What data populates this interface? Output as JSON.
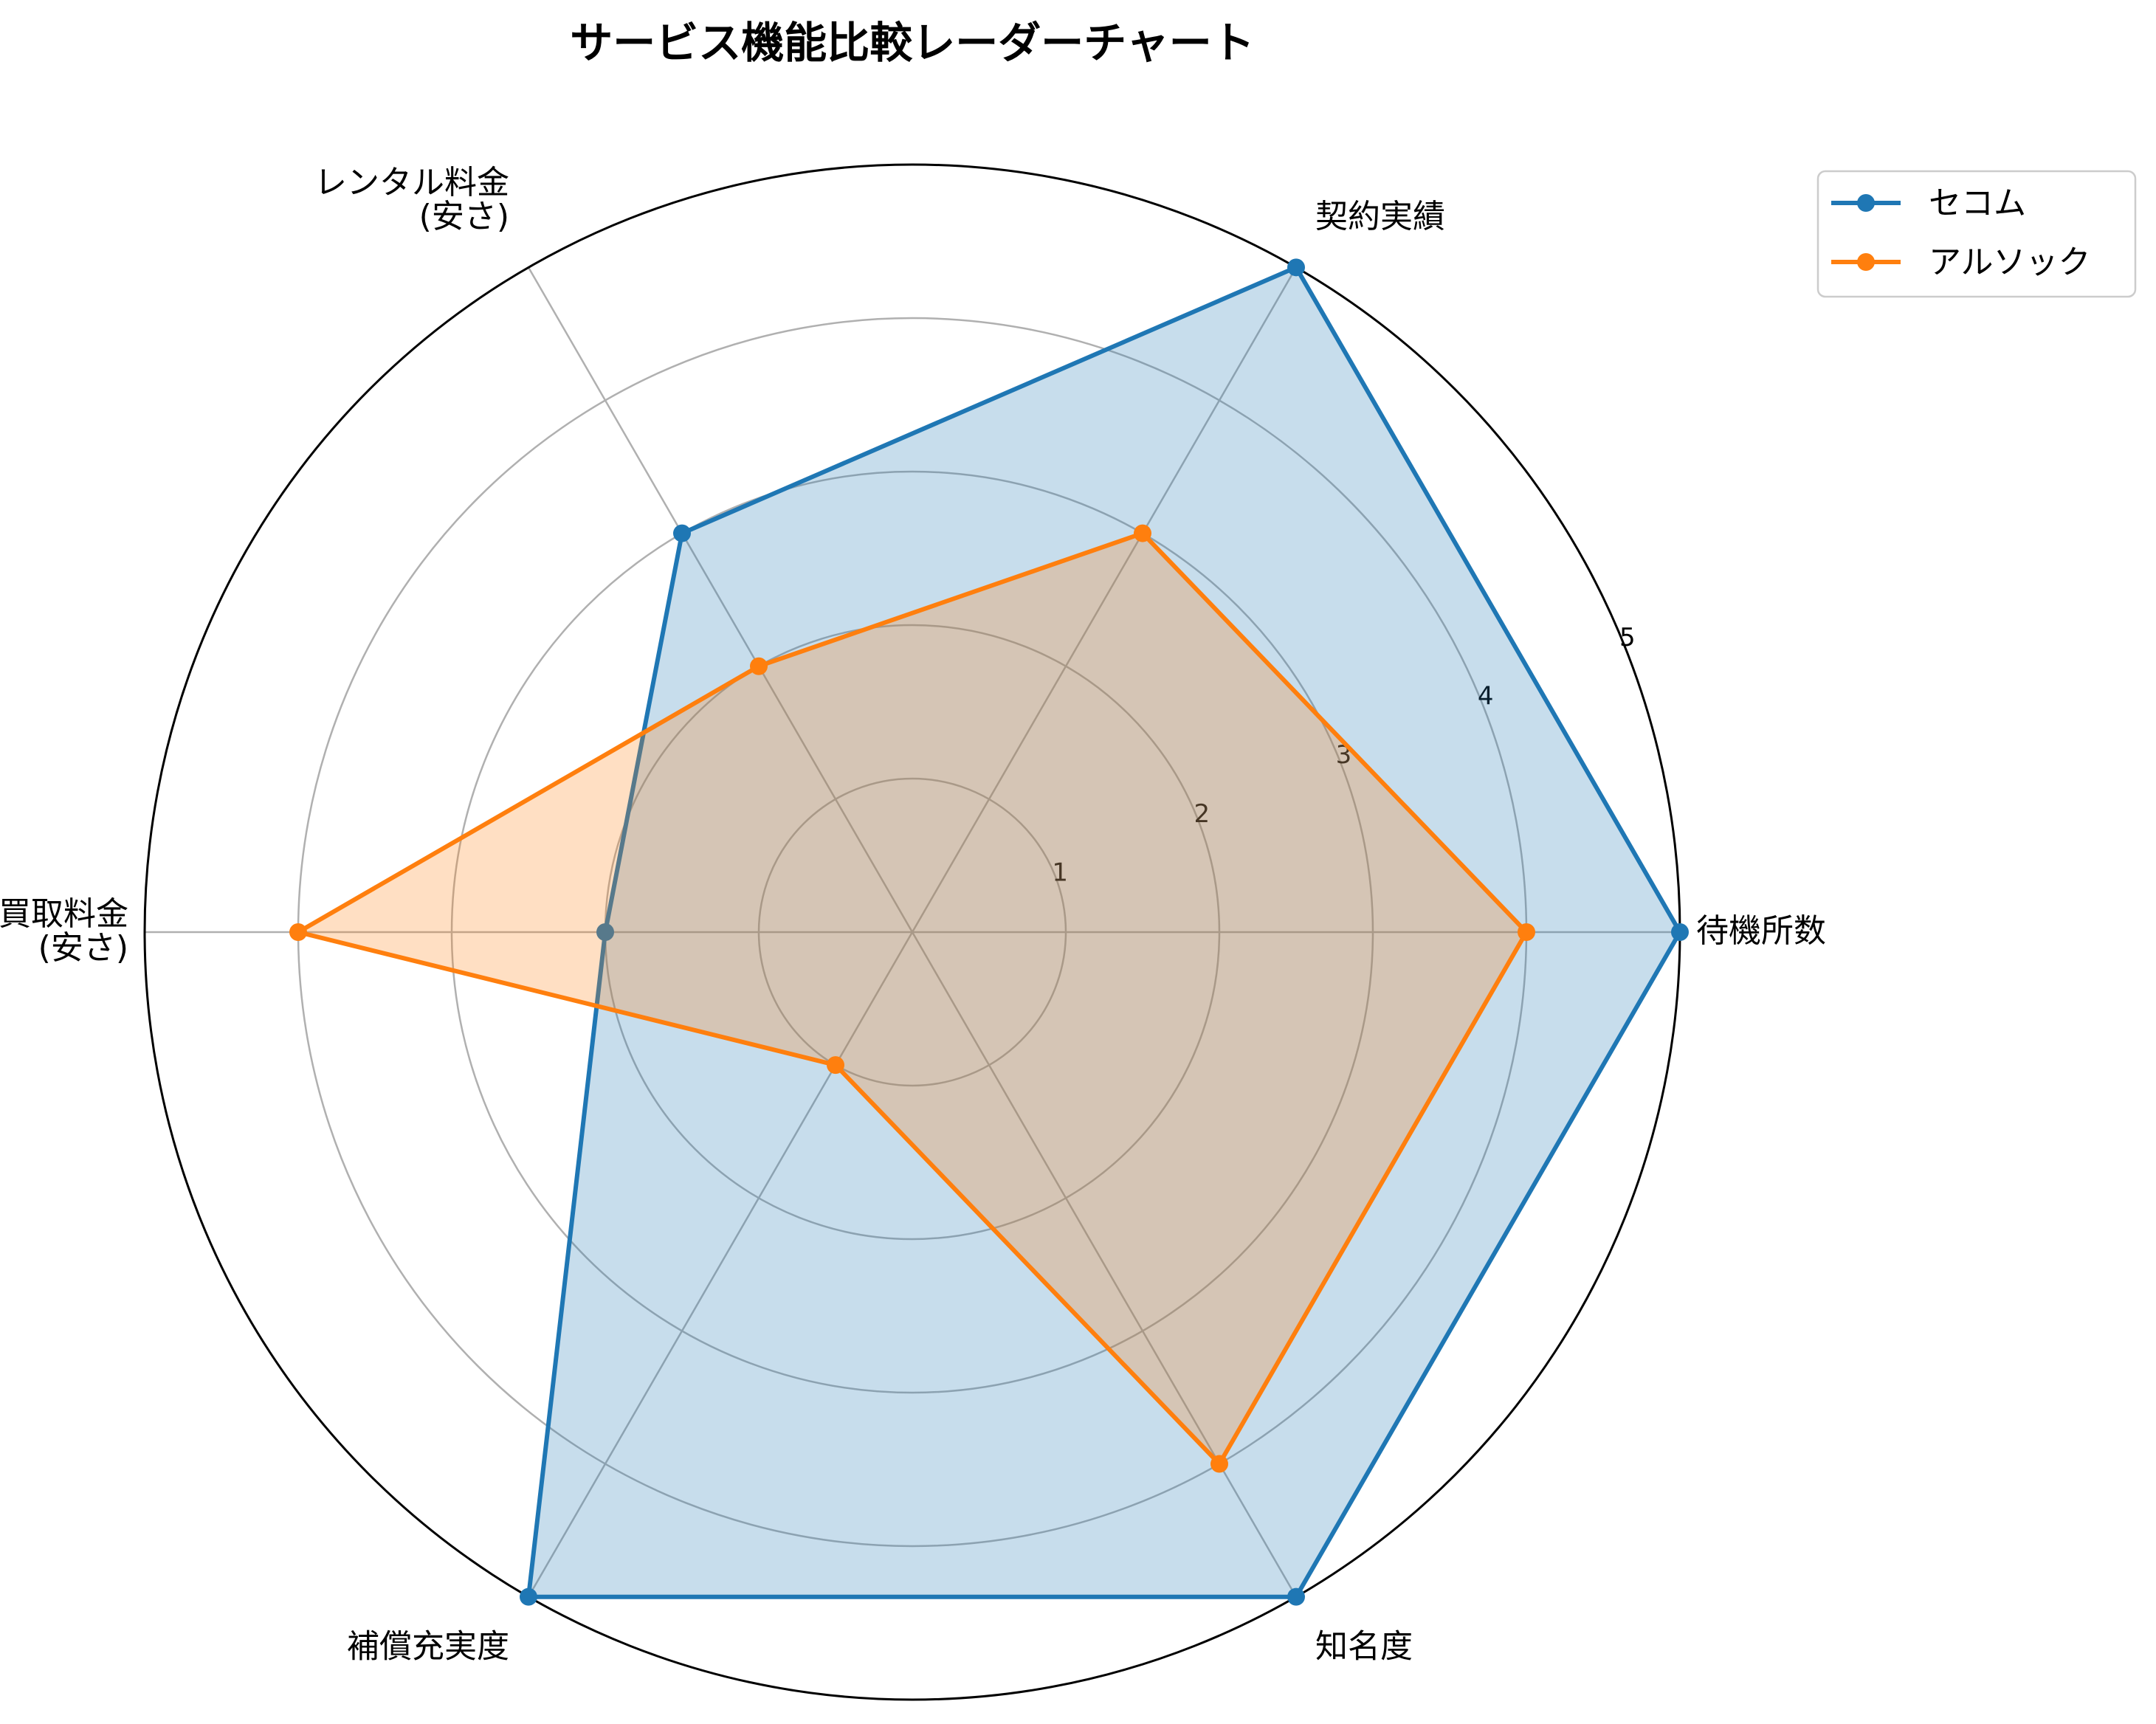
{
  "chart_data": {
    "type": "radar",
    "title": "サービス機能比較レーダーチャート",
    "axes": [
      "待機所数",
      "契約実績",
      [
        "レンタル料金",
        "(安さ)"
      ],
      [
        "買取料金",
        "(安さ)"
      ],
      "補償充実度",
      "知名度"
    ],
    "r_ticks": [
      "1",
      "2",
      "3",
      "4",
      "5"
    ],
    "r_range": [
      0,
      5
    ],
    "grid": true,
    "legend": {
      "placement": "top-right"
    },
    "series": [
      {
        "name": "セコム",
        "values": [
          5,
          5,
          3,
          2,
          5,
          5
        ],
        "color": "#1f77b4"
      },
      {
        "name": "アルソック",
        "values": [
          4,
          3,
          2,
          4,
          1,
          4
        ],
        "color": "#ff7f0e"
      }
    ]
  }
}
